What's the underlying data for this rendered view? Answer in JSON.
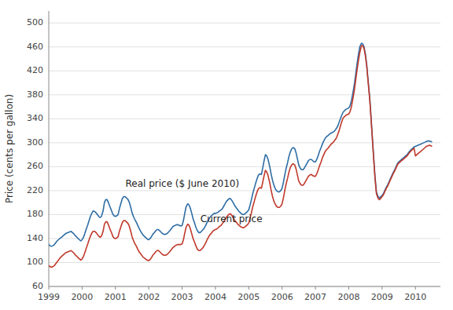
{
  "chart_data": {
    "type": "line",
    "ylabel": "Price (cents per gallon)",
    "xlim": [
      1999.0,
      2010.75
    ],
    "ylim": [
      60,
      520
    ],
    "yticks": [
      60,
      100,
      140,
      180,
      220,
      260,
      300,
      340,
      380,
      420,
      460,
      500
    ],
    "xticks": [
      1999,
      2000,
      2001,
      2002,
      2003,
      2004,
      2005,
      2006,
      2007,
      2008,
      2009,
      2010
    ],
    "grid": true,
    "x": [
      1999.0,
      1999.04,
      1999.08,
      1999.12,
      1999.17,
      1999.21,
      1999.25,
      1999.29,
      1999.33,
      1999.38,
      1999.42,
      1999.46,
      1999.5,
      1999.54,
      1999.58,
      1999.63,
      1999.67,
      1999.71,
      1999.75,
      1999.79,
      1999.83,
      1999.88,
      1999.92,
      1999.96,
      2000.0,
      2000.04,
      2000.08,
      2000.12,
      2000.17,
      2000.21,
      2000.25,
      2000.29,
      2000.33,
      2000.38,
      2000.42,
      2000.46,
      2000.5,
      2000.54,
      2000.58,
      2000.63,
      2000.67,
      2000.71,
      2000.75,
      2000.79,
      2000.83,
      2000.88,
      2000.92,
      2000.96,
      2001.0,
      2001.04,
      2001.08,
      2001.12,
      2001.17,
      2001.21,
      2001.25,
      2001.29,
      2001.33,
      2001.38,
      2001.42,
      2001.46,
      2001.5,
      2001.54,
      2001.58,
      2001.63,
      2001.67,
      2001.71,
      2001.75,
      2001.79,
      2001.83,
      2001.88,
      2001.92,
      2001.96,
      2002.0,
      2002.04,
      2002.08,
      2002.12,
      2002.17,
      2002.21,
      2002.25,
      2002.29,
      2002.33,
      2002.38,
      2002.42,
      2002.46,
      2002.5,
      2002.54,
      2002.58,
      2002.63,
      2002.67,
      2002.71,
      2002.75,
      2002.79,
      2002.83,
      2002.88,
      2002.92,
      2002.96,
      2003.0,
      2003.04,
      2003.08,
      2003.12,
      2003.17,
      2003.21,
      2003.25,
      2003.29,
      2003.33,
      2003.38,
      2003.42,
      2003.46,
      2003.5,
      2003.54,
      2003.58,
      2003.63,
      2003.67,
      2003.71,
      2003.75,
      2003.79,
      2003.83,
      2003.88,
      2003.92,
      2003.96,
      2004.0,
      2004.04,
      2004.08,
      2004.12,
      2004.17,
      2004.21,
      2004.25,
      2004.29,
      2004.33,
      2004.38,
      2004.42,
      2004.46,
      2004.5,
      2004.54,
      2004.58,
      2004.63,
      2004.67,
      2004.71,
      2004.75,
      2004.79,
      2004.83,
      2004.88,
      2004.92,
      2004.96,
      2005.0,
      2005.04,
      2005.08,
      2005.12,
      2005.17,
      2005.21,
      2005.25,
      2005.29,
      2005.33,
      2005.38,
      2005.42,
      2005.46,
      2005.5,
      2005.54,
      2005.58,
      2005.63,
      2005.67,
      2005.71,
      2005.75,
      2005.79,
      2005.83,
      2005.88,
      2005.92,
      2005.96,
      2006.0,
      2006.04,
      2006.08,
      2006.12,
      2006.17,
      2006.21,
      2006.25,
      2006.29,
      2006.33,
      2006.38,
      2006.42,
      2006.46,
      2006.5,
      2006.54,
      2006.58,
      2006.63,
      2006.67,
      2006.71,
      2006.75,
      2006.79,
      2006.83,
      2006.88,
      2006.92,
      2006.96,
      2007.0,
      2007.04,
      2007.08,
      2007.12,
      2007.17,
      2007.21,
      2007.25,
      2007.29,
      2007.33,
      2007.38,
      2007.42,
      2007.46,
      2007.5,
      2007.54,
      2007.58,
      2007.63,
      2007.67,
      2007.71,
      2007.75,
      2007.79,
      2007.83,
      2007.88,
      2007.92,
      2007.96,
      2008.0,
      2008.04,
      2008.08,
      2008.12,
      2008.17,
      2008.21,
      2008.25,
      2008.29,
      2008.33,
      2008.38,
      2008.42,
      2008.46,
      2008.5,
      2008.54,
      2008.58,
      2008.63,
      2008.67,
      2008.71,
      2008.75,
      2008.79,
      2008.83,
      2008.88,
      2008.92,
      2008.96,
      2009.0,
      2009.04,
      2009.08,
      2009.12,
      2009.17,
      2009.21,
      2009.25,
      2009.29,
      2009.33,
      2009.38,
      2009.42,
      2009.46,
      2009.5,
      2009.54,
      2009.58,
      2009.63,
      2009.67,
      2009.71,
      2009.75,
      2009.79,
      2009.83,
      2009.88,
      2009.92,
      2009.96,
      2010.0,
      2010.04,
      2010.08,
      2010.12,
      2010.17,
      2010.21,
      2010.25,
      2010.29,
      2010.33,
      2010.38,
      2010.42,
      2010.46,
      2010.5
    ],
    "series": [
      {
        "color": "#2e6da4",
        "values": [
          130,
          128,
          127,
          128,
          130,
          133,
          136,
          138,
          140,
          142,
          144,
          146,
          148,
          149,
          150,
          151,
          152,
          150,
          148,
          145,
          143,
          140,
          138,
          136,
          138,
          142,
          148,
          155,
          163,
          170,
          177,
          182,
          186,
          185,
          183,
          180,
          177,
          175,
          177,
          186,
          200,
          205,
          205,
          200,
          194,
          187,
          181,
          178,
          177,
          178,
          180,
          190,
          200,
          207,
          210,
          210,
          208,
          205,
          200,
          192,
          183,
          177,
          172,
          167,
          162,
          157,
          153,
          149,
          146,
          143,
          141,
          139,
          138,
          140,
          143,
          147,
          150,
          153,
          155,
          155,
          153,
          150,
          148,
          147,
          147,
          148,
          150,
          153,
          156,
          159,
          161,
          162,
          163,
          163,
          162,
          161,
          162,
          170,
          182,
          193,
          198,
          196,
          190,
          182,
          173,
          165,
          158,
          153,
          150,
          150,
          152,
          155,
          158,
          162,
          167,
          171,
          175,
          178,
          180,
          182,
          182,
          183,
          184,
          186,
          188,
          190,
          194,
          198,
          202,
          205,
          207,
          206,
          203,
          199,
          195,
          191,
          188,
          185,
          183,
          181,
          180,
          181,
          183,
          185,
          188,
          196,
          205,
          215,
          225,
          233,
          240,
          246,
          248,
          247,
          258,
          270,
          280,
          278,
          272,
          260,
          248,
          238,
          230,
          224,
          220,
          218,
          218,
          220,
          224,
          234,
          246,
          257,
          268,
          278,
          285,
          290,
          292,
          290,
          283,
          273,
          263,
          258,
          255,
          255,
          258,
          262,
          266,
          270,
          272,
          272,
          270,
          268,
          268,
          272,
          278,
          285,
          292,
          298,
          303,
          307,
          310,
          312,
          314,
          316,
          317,
          318,
          320,
          324,
          328,
          334,
          340,
          346,
          351,
          354,
          356,
          357,
          358,
          362,
          370,
          382,
          398,
          415,
          432,
          447,
          460,
          466,
          465,
          460,
          448,
          430,
          405,
          375,
          342,
          308,
          274,
          242,
          218,
          210,
          208,
          210,
          212,
          215,
          220,
          225,
          230,
          235,
          240,
          245,
          250,
          255,
          260,
          265,
          268,
          270,
          272,
          274,
          276,
          278,
          280,
          283,
          286,
          289,
          291,
          293,
          294,
          295,
          296,
          297,
          298,
          299,
          300,
          301,
          302,
          303,
          303,
          302,
          301
        ]
      },
      {
        "color": "#c0392b",
        "values": [
          95,
          93,
          92,
          93,
          95,
          98,
          101,
          104,
          107,
          110,
          112,
          114,
          116,
          117,
          118,
          119,
          120,
          118,
          116,
          113,
          111,
          108,
          106,
          104,
          106,
          110,
          116,
          123,
          131,
          138,
          144,
          149,
          152,
          152,
          150,
          147,
          144,
          142,
          144,
          152,
          164,
          168,
          168,
          163,
          157,
          150,
          144,
          141,
          140,
          141,
          143,
          152,
          161,
          167,
          170,
          170,
          168,
          165,
          160,
          152,
          143,
          137,
          132,
          127,
          122,
          118,
          115,
          112,
          109,
          107,
          105,
          104,
          103,
          105,
          108,
          112,
          115,
          118,
          120,
          120,
          118,
          115,
          113,
          112,
          112,
          113,
          115,
          118,
          121,
          124,
          126,
          128,
          129,
          130,
          130,
          130,
          131,
          138,
          149,
          159,
          164,
          162,
          156,
          148,
          140,
          133,
          127,
          122,
          120,
          120,
          122,
          125,
          129,
          133,
          138,
          142,
          146,
          149,
          152,
          154,
          155,
          156,
          158,
          160,
          162,
          165,
          168,
          172,
          176,
          179,
          181,
          181,
          178,
          174,
          170,
          167,
          164,
          162,
          160,
          159,
          158,
          159,
          161,
          163,
          166,
          174,
          183,
          193,
          203,
          211,
          218,
          223,
          225,
          224,
          234,
          245,
          254,
          251,
          245,
          233,
          221,
          211,
          203,
          198,
          194,
          192,
          192,
          194,
          198,
          208,
          220,
          231,
          242,
          252,
          259,
          263,
          265,
          263,
          256,
          246,
          236,
          232,
          229,
          229,
          232,
          236,
          240,
          244,
          246,
          247,
          245,
          244,
          244,
          248,
          254,
          261,
          268,
          275,
          280,
          285,
          288,
          291,
          294,
          297,
          299,
          301,
          304,
          308,
          314,
          320,
          328,
          335,
          341,
          344,
          346,
          347,
          348,
          352,
          360,
          372,
          388,
          405,
          422,
          437,
          450,
          462,
          462,
          457,
          445,
          427,
          402,
          372,
          339,
          305,
          271,
          239,
          215,
          207,
          205,
          207,
          210,
          213,
          218,
          223,
          228,
          233,
          238,
          243,
          248,
          253,
          258,
          263,
          266,
          268,
          270,
          272,
          274,
          276,
          278,
          281,
          284,
          287,
          289,
          291,
          278,
          280,
          282,
          284,
          286,
          288,
          290,
          292,
          294,
          295,
          296,
          295,
          294
        ]
      }
    ],
    "annotations": [
      {
        "text": "Real price ($ June 2010)",
        "x": 2001.3,
        "y": 222
      },
      {
        "text": "Current price",
        "x": 2003.55,
        "y": 163
      }
    ]
  }
}
